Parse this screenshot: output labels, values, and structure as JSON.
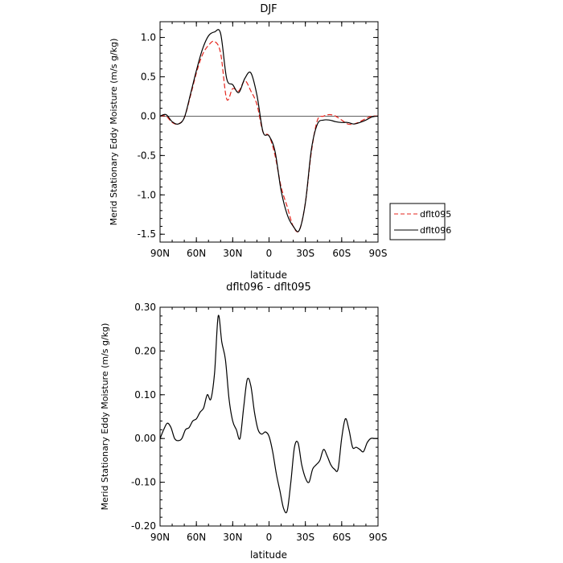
{
  "chart_data": [
    {
      "type": "line",
      "title": "DJF",
      "xlabel": "latitude",
      "ylabel": "Merid Stationary Eddy Moisture (m/s g/kg)",
      "x_ticks": [
        "90N",
        "60N",
        "30N",
        "0",
        "30S",
        "60S",
        "90S"
      ],
      "y_ticks": [
        "-1.5",
        "-1.0",
        "-0.5",
        "0.0",
        "0.5",
        "1.0"
      ],
      "ylim": [
        -1.6,
        1.2
      ],
      "xlim": [
        90,
        -90
      ],
      "zero_line": true,
      "legend": {
        "placement": "right-bottom-outside"
      },
      "series": [
        {
          "name": "dflt095",
          "color": "#e4261e",
          "dash": "dashed",
          "x": [
            90,
            85,
            80,
            75,
            70,
            65,
            60,
            55,
            50,
            45,
            40,
            35,
            30,
            25,
            20,
            15,
            10,
            5,
            0,
            -5,
            -10,
            -15,
            -20,
            -25,
            -30,
            -35,
            -40,
            -45,
            -50,
            -55,
            -60,
            -65,
            -70,
            -75,
            -80,
            -85,
            -90
          ],
          "y": [
            0,
            0,
            -0.08,
            -0.1,
            -0.02,
            0.25,
            0.55,
            0.78,
            0.9,
            0.95,
            0.8,
            0.22,
            0.35,
            0.32,
            0.45,
            0.32,
            0.15,
            -0.2,
            -0.25,
            -0.5,
            -0.9,
            -1.15,
            -1.4,
            -1.45,
            -1.1,
            -0.45,
            -0.05,
            0.0,
            0.02,
            0.0,
            -0.05,
            -0.1,
            -0.1,
            -0.07,
            -0.03,
            0.0,
            0.0
          ]
        },
        {
          "name": "dflt096",
          "color": "#000000",
          "dash": "solid",
          "x": [
            90,
            85,
            80,
            75,
            70,
            65,
            60,
            55,
            50,
            45,
            40,
            35,
            30,
            25,
            20,
            15,
            10,
            5,
            0,
            -5,
            -10,
            -15,
            -20,
            -25,
            -30,
            -35,
            -40,
            -45,
            -50,
            -55,
            -60,
            -65,
            -70,
            -75,
            -80,
            -85,
            -90
          ],
          "y": [
            0,
            0.02,
            -0.07,
            -0.1,
            -0.02,
            0.27,
            0.58,
            0.85,
            1.02,
            1.07,
            1.05,
            0.48,
            0.4,
            0.3,
            0.48,
            0.55,
            0.27,
            -0.2,
            -0.25,
            -0.45,
            -0.95,
            -1.25,
            -1.4,
            -1.45,
            -1.1,
            -0.42,
            -0.1,
            -0.05,
            -0.05,
            -0.07,
            -0.08,
            -0.08,
            -0.1,
            -0.08,
            -0.05,
            -0.01,
            0.0
          ]
        }
      ]
    },
    {
      "type": "line",
      "title": "dflt096 - dflt095",
      "xlabel": "latitude",
      "ylabel": "Merid Stationary Eddy Moisture (m/s g/kg)",
      "x_ticks": [
        "90N",
        "60N",
        "30N",
        "0",
        "30S",
        "60S",
        "90S"
      ],
      "y_ticks": [
        "-0.20",
        "-0.10",
        "0.00",
        "0.10",
        "0.20",
        "0.30"
      ],
      "ylim": [
        -0.2,
        0.3
      ],
      "xlim": [
        90,
        -90
      ],
      "zero_line": false,
      "series": [
        {
          "color": "#000000",
          "dash": "solid",
          "x": [
            90,
            87,
            84,
            81,
            78,
            75,
            72,
            69,
            66,
            63,
            60,
            57,
            54,
            51,
            48,
            45,
            42,
            39,
            36,
            33,
            30,
            27,
            24,
            21,
            18,
            15,
            12,
            9,
            6,
            3,
            0,
            -3,
            -6,
            -9,
            -12,
            -15,
            -18,
            -21,
            -24,
            -27,
            -30,
            -33,
            -36,
            -39,
            -42,
            -45,
            -48,
            -51,
            -54,
            -57,
            -60,
            -63,
            -66,
            -69,
            -72,
            -75,
            -78,
            -81,
            -84,
            -87,
            -90
          ],
          "y": [
            0.0,
            0.02,
            0.035,
            0.025,
            0.0,
            -0.005,
            0.0,
            0.02,
            0.025,
            0.04,
            0.045,
            0.06,
            0.07,
            0.1,
            0.09,
            0.15,
            0.28,
            0.22,
            0.18,
            0.09,
            0.04,
            0.02,
            0.0,
            0.07,
            0.135,
            0.12,
            0.06,
            0.02,
            0.01,
            0.015,
            0.005,
            -0.03,
            -0.08,
            -0.12,
            -0.16,
            -0.165,
            -0.1,
            -0.02,
            -0.01,
            -0.06,
            -0.09,
            -0.1,
            -0.07,
            -0.06,
            -0.05,
            -0.025,
            -0.04,
            -0.06,
            -0.07,
            -0.07,
            0.0,
            0.045,
            0.02,
            -0.02,
            -0.02,
            -0.025,
            -0.03,
            -0.01,
            0.0,
            0.0,
            0.0
          ]
        }
      ]
    }
  ]
}
